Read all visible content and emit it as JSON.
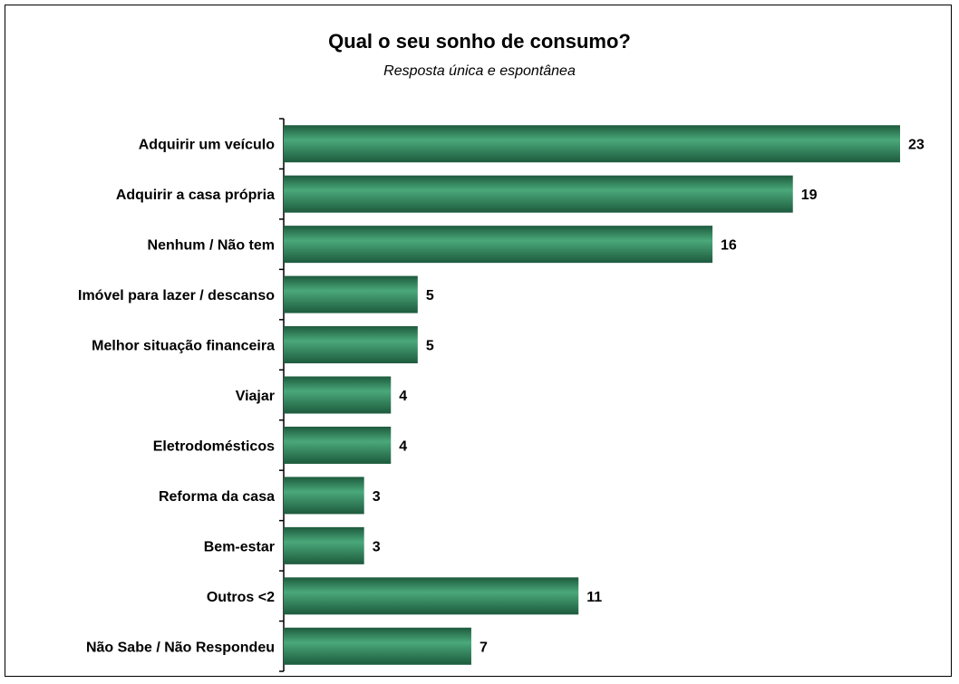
{
  "chart_data": {
    "type": "bar",
    "orientation": "horizontal",
    "title": "Qual o seu sonho de consumo?",
    "subtitle": "Resposta única e espontânea",
    "categories": [
      "Adquirir um veículo",
      "Adquirir a casa própria",
      "Nenhum / Não tem",
      "Imóvel para lazer / descanso",
      "Melhor situação financeira",
      "Viajar",
      "Eletrodomésticos",
      "Reforma da casa",
      "Bem-estar",
      "Outros <2",
      "Não Sabe / Não Respondeu"
    ],
    "values": [
      23,
      19,
      16,
      5,
      5,
      4,
      4,
      3,
      3,
      11,
      7
    ],
    "xlim": [
      0,
      23
    ],
    "grid": false,
    "legend": false,
    "colors": {
      "bar": "#2e7d58",
      "bar_light": "#4aa87a",
      "bar_dark": "#1d5a3d"
    }
  }
}
